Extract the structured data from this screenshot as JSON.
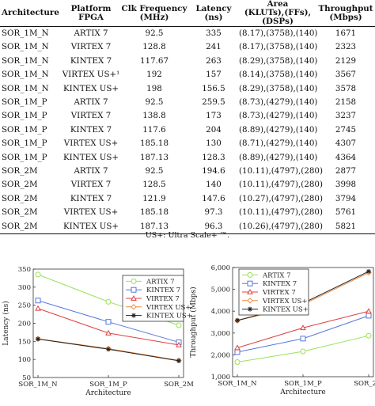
{
  "table": {
    "headers": [
      {
        "line1": "Architecture",
        "line2": ""
      },
      {
        "line1": "Platform",
        "line2": "FPGA"
      },
      {
        "line1": "Clk Frequency",
        "line2": "(MHz)"
      },
      {
        "line1": "Latency",
        "line2": "(ns)"
      },
      {
        "line1": "Area",
        "line2": "(KLUTs),(FFs),(DSPs)"
      },
      {
        "line1": "Throughput",
        "line2": "(Mbps)"
      }
    ],
    "rows": [
      [
        "SOR_1M_N",
        "ARTIX 7",
        "92.5",
        "335",
        "(8.17),(3758),(140)",
        "1671"
      ],
      [
        "SOR_1M_N",
        "VIRTEX 7",
        "128.8",
        "241",
        "(8.17),(3758),(140)",
        "2323"
      ],
      [
        "SOR_1M_N",
        "KINTEX 7",
        "117.67",
        "263",
        "(8.29),(3758),(140)",
        "2129"
      ],
      [
        "SOR_1M_N",
        "VIRTEX US+¹",
        "192",
        "157",
        "(8.14),(3758),(140)",
        "3567"
      ],
      [
        "SOR_1M_N",
        "KINTEX US+",
        "198",
        "156.5",
        "(8.29),(3758),(140)",
        "3578"
      ],
      [
        "SOR_1M_P",
        "ARTIX 7",
        "92.5",
        "259.5",
        "(8.73),(4279),(140)",
        "2158"
      ],
      [
        "SOR_1M_P",
        "VIRTEX 7",
        "138.8",
        "173",
        "(8.73),(4279),(140)",
        "3237"
      ],
      [
        "SOR_1M_P",
        "KINTEX 7",
        "117.6",
        "204",
        "(8.89),(4279),(140)",
        "2745"
      ],
      [
        "SOR_1M_P",
        "VIRTEX US+",
        "185.18",
        "130",
        "(8.71),(4279),(140)",
        "4307"
      ],
      [
        "SOR_1M_P",
        "KINTEX US+",
        "187.13",
        "128.3",
        "(8.89),(4279),(140)",
        "4364"
      ],
      [
        "SOR_2M",
        "ARTIX 7",
        "92.5",
        "194.6",
        "(10.11),(4797),(280)",
        "2877"
      ],
      [
        "SOR_2M",
        "VIRTEX 7",
        "128.5",
        "140",
        "(10.11),(4797),(280)",
        "3998"
      ],
      [
        "SOR_2M",
        "KINTEX 7",
        "121.9",
        "147.6",
        "(10.27),(4797),(280)",
        "3794"
      ],
      [
        "SOR_2M",
        "VIRTEX US+",
        "185.18",
        "97.3",
        "(10.11),(4797),(280)",
        "5761"
      ],
      [
        "SOR_2M",
        "KINTEX US+",
        "187.13",
        "96.3",
        "(10.26),(4797),(280)",
        "5821"
      ]
    ],
    "footnote": "US+: Ultra Scale+ ™."
  },
  "chart_data": [
    {
      "type": "line",
      "categories": [
        "SOR_1M_N",
        "SOR_1M_P",
        "SOR_2M"
      ],
      "xlabel": "Architecture",
      "ylabel": "Latency (ns)",
      "ylim": [
        50,
        350
      ],
      "yticks": [
        "50",
        "100",
        "150",
        "200",
        "250",
        "300",
        "350"
      ],
      "legend_position": "top-right",
      "series": [
        {
          "name": "ARTIX 7",
          "values": [
            335,
            259.5,
            194.6
          ],
          "color": "#9be05a",
          "marker": "circle"
        },
        {
          "name": "KINTEX 7",
          "values": [
            263,
            204,
            147.6
          ],
          "color": "#5577dd",
          "marker": "square"
        },
        {
          "name": "VIRTEX 7",
          "values": [
            241,
            173,
            140
          ],
          "color": "#e04040",
          "marker": "triangle"
        },
        {
          "name": "VIRTEX US+",
          "values": [
            157,
            130,
            97.3
          ],
          "color": "#f08a3c",
          "marker": "diamond"
        },
        {
          "name": "KINTEX US+",
          "values": [
            156.5,
            128.3,
            96.3
          ],
          "color": "#222222",
          "marker": "star"
        }
      ]
    },
    {
      "type": "line",
      "categories": [
        "SOR_1M_N",
        "SOR_1M_P",
        "SOR_2M"
      ],
      "xlabel": "Architecture",
      "ylabel": "Throughput (Mbps)",
      "ylim": [
        1000,
        6000
      ],
      "yticks": [
        "1,000",
        "2,000",
        "3,000",
        "4,000",
        "5,000",
        "6,000"
      ],
      "legend_position": "top-left",
      "series": [
        {
          "name": "ARTIX 7",
          "values": [
            1671,
            2158,
            2877
          ],
          "color": "#9be05a",
          "marker": "circle"
        },
        {
          "name": "KINTEX 7",
          "values": [
            2129,
            2745,
            3794
          ],
          "color": "#5577dd",
          "marker": "square"
        },
        {
          "name": "VIRTEX 7",
          "values": [
            2323,
            3237,
            3998
          ],
          "color": "#e04040",
          "marker": "triangle"
        },
        {
          "name": "VIRTEX US+",
          "values": [
            3567,
            4307,
            5761
          ],
          "color": "#f08a3c",
          "marker": "diamond"
        },
        {
          "name": "KINTEX US+",
          "values": [
            3578,
            4364,
            5821
          ],
          "color": "#222222",
          "marker": "star"
        }
      ]
    }
  ]
}
